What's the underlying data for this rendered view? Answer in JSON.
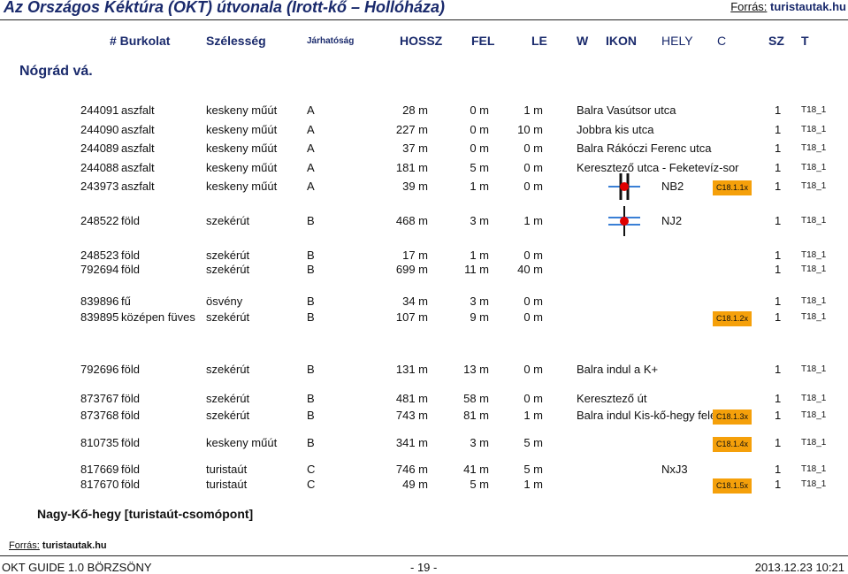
{
  "header": {
    "title": "Az Országos Kéktúra (OKT) útvonala (Írott-kő – Hollóháza)",
    "source_label": "Forrás:",
    "source_url": "turistautak.hu"
  },
  "columns": {
    "num": "# Burkolat",
    "width": "Szélesség",
    "passability": "Járhatóság",
    "length": "HOSSZ",
    "up": "FEL",
    "down": "LE",
    "w": "W",
    "icon": "IKON",
    "place": "HELY",
    "c": "C",
    "sz": "SZ",
    "t": "T"
  },
  "region": "Nógrád vá.",
  "rows": [
    {
      "id": "244091",
      "surface": "aszfalt",
      "width": "keskeny műút",
      "pass": "A",
      "len": "28 m",
      "up": "0 m",
      "down": "1 m",
      "desc": "Balra Vasútsor utca",
      "code": "",
      "sz": "1",
      "t": "T18_1",
      "icon": ""
    },
    {
      "id": "244090",
      "surface": "aszfalt",
      "width": "keskeny műút",
      "pass": "A",
      "len": "227 m",
      "up": "0 m",
      "down": "10 m",
      "desc": "Jobbra kis utca",
      "code": "",
      "sz": "1",
      "t": "T18_1",
      "icon": ""
    },
    {
      "id": "244089",
      "surface": "aszfalt",
      "width": "keskeny műút",
      "pass": "A",
      "len": "37 m",
      "up": "0 m",
      "down": "0 m",
      "desc": "Balra Rákóczi Ferenc utca",
      "code": "",
      "sz": "1",
      "t": "T18_1",
      "icon": ""
    },
    {
      "id": "244088",
      "surface": "aszfalt",
      "width": "keskeny műút",
      "pass": "A",
      "len": "181 m",
      "up": "5 m",
      "down": "0 m",
      "desc": "Keresztező utca - Feketevíz-sor",
      "code": "",
      "sz": "1",
      "t": "T18_1",
      "icon": ""
    },
    {
      "id": "243973",
      "surface": "aszfalt",
      "width": "keskeny műút",
      "pass": "A",
      "len": "39 m",
      "up": "1 m",
      "down": "0 m",
      "desc": "NB2",
      "code": "C18.1.1x",
      "sz": "1",
      "t": "T18_1",
      "icon": "junction-a"
    },
    {
      "id": "248522",
      "surface": "föld",
      "width": "szekérút",
      "pass": "B",
      "len": "468 m",
      "up": "3 m",
      "down": "1 m",
      "desc": "NJ2",
      "code": "",
      "sz": "1",
      "t": "T18_1",
      "icon": "junction-b"
    },
    {
      "id": "248523",
      "surface": "föld",
      "width": "szekérút",
      "pass": "B",
      "len": "17 m",
      "up": "1 m",
      "down": "0 m",
      "desc": "",
      "code": "",
      "sz": "1",
      "t": "T18_1",
      "icon": ""
    },
    {
      "id": "792694",
      "surface": "föld",
      "width": "szekérút",
      "pass": "B",
      "len": "699 m",
      "up": "11 m",
      "down": "40 m",
      "desc": "",
      "code": "",
      "sz": "1",
      "t": "T18_1",
      "icon": ""
    },
    {
      "id": "839896",
      "surface": "fű",
      "width": "ösvény",
      "pass": "B",
      "len": "34 m",
      "up": "3 m",
      "down": "0 m",
      "desc": "",
      "code": "",
      "sz": "1",
      "t": "T18_1",
      "icon": ""
    },
    {
      "id": "839895",
      "surface": "középen füves",
      "width": "szekérút",
      "pass": "B",
      "len": "107 m",
      "up": "9 m",
      "down": "0 m",
      "desc": "",
      "code": "C18.1.2x",
      "sz": "1",
      "t": "T18_1",
      "icon": ""
    },
    {
      "id": "792696",
      "surface": "föld",
      "width": "szekérút",
      "pass": "B",
      "len": "131 m",
      "up": "13 m",
      "down": "0 m",
      "desc": "Balra indul a K+",
      "code": "",
      "sz": "1",
      "t": "T18_1",
      "icon": ""
    },
    {
      "id": "873767",
      "surface": "föld",
      "width": "szekérút",
      "pass": "B",
      "len": "481 m",
      "up": "58 m",
      "down": "0 m",
      "desc": "Keresztező út",
      "code": "",
      "sz": "1",
      "t": "T18_1",
      "icon": ""
    },
    {
      "id": "873768",
      "surface": "föld",
      "width": "szekérút",
      "pass": "B",
      "len": "743 m",
      "up": "81 m",
      "down": "1 m",
      "desc": "Balra indul Kis-kő-hegy felé",
      "code": "C18.1.3x",
      "sz": "1",
      "t": "T18_1",
      "icon": ""
    },
    {
      "id": "810735",
      "surface": "föld",
      "width": "keskeny műút",
      "pass": "B",
      "len": "341 m",
      "up": "3 m",
      "down": "5 m",
      "desc": "",
      "code": "C18.1.4x",
      "sz": "1",
      "t": "T18_1",
      "icon": ""
    },
    {
      "id": "817669",
      "surface": "föld",
      "width": "turistaút",
      "pass": "C",
      "len": "746 m",
      "up": "41 m",
      "down": "5 m",
      "desc": "NxJ3",
      "code": "",
      "sz": "1",
      "t": "T18_1",
      "icon": ""
    },
    {
      "id": "817670",
      "surface": "föld",
      "width": "turistaút",
      "pass": "C",
      "len": "49 m",
      "up": "5 m",
      "down": "1 m",
      "desc": "",
      "code": "C18.1.5x",
      "sz": "1",
      "t": "T18_1",
      "icon": ""
    }
  ],
  "summit": "Nagy-Kő-hegy [turistaút-csomópont]",
  "bottom_source": {
    "label": "Forrás:",
    "url": "turistautak.hu"
  },
  "footer": {
    "left": "OKT GUIDE 1.0 BÖRZSÖNY",
    "center": "- 19 -",
    "right": "2013.12.23 10:21"
  },
  "colors": {
    "title": "#1a2a6c",
    "badge": "#f5a00a",
    "junction_dot": "#e00000",
    "junction_line_blue": "#3a7fd5"
  }
}
